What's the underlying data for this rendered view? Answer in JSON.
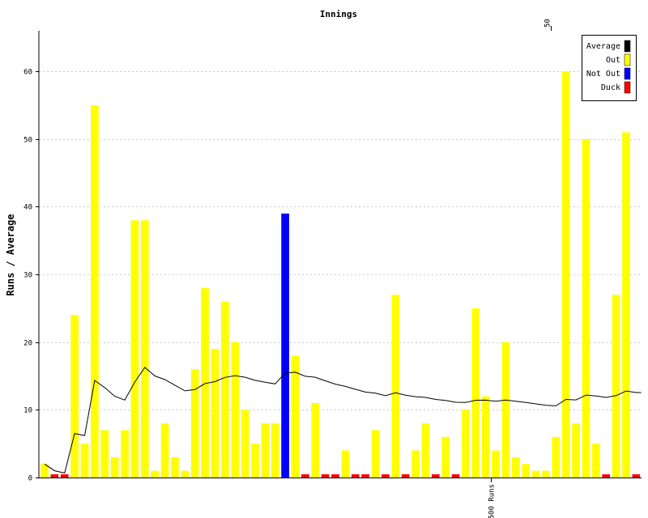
{
  "chart_data": {
    "type": "bar",
    "title": "Innings",
    "xlabel": "",
    "ylabel": "Runs / Average",
    "ylim": [
      0,
      66
    ],
    "yticks": [
      0,
      10,
      20,
      30,
      40,
      50,
      60
    ],
    "grid": true,
    "legend_position": "top-right",
    "top_markers": [
      {
        "innings": 50,
        "label": "50"
      }
    ],
    "bottom_markers": [
      {
        "innings": 44,
        "label": "500 Runs"
      }
    ],
    "series": [
      {
        "name": "Average",
        "color": "#000000"
      },
      {
        "name": "Out",
        "color": "#ffff00"
      },
      {
        "name": "Not Out",
        "color": "#0000ff"
      },
      {
        "name": "Duck",
        "color": "#ff0000"
      }
    ],
    "innings": [
      {
        "runs": 2,
        "status": "Out"
      },
      {
        "runs": 0,
        "status": "Duck"
      },
      {
        "runs": 0,
        "status": "Duck"
      },
      {
        "runs": 24,
        "status": "Out"
      },
      {
        "runs": 5,
        "status": "Out"
      },
      {
        "runs": 55,
        "status": "Out"
      },
      {
        "runs": 7,
        "status": "Out"
      },
      {
        "runs": 3,
        "status": "Out"
      },
      {
        "runs": 7,
        "status": "Out"
      },
      {
        "runs": 38,
        "status": "Out"
      },
      {
        "runs": 38,
        "status": "Out"
      },
      {
        "runs": 1,
        "status": "Out"
      },
      {
        "runs": 8,
        "status": "Out"
      },
      {
        "runs": 3,
        "status": "Out"
      },
      {
        "runs": 1,
        "status": "Out"
      },
      {
        "runs": 16,
        "status": "Out"
      },
      {
        "runs": 28,
        "status": "Out"
      },
      {
        "runs": 19,
        "status": "Out"
      },
      {
        "runs": 26,
        "status": "Out"
      },
      {
        "runs": 20,
        "status": "Out"
      },
      {
        "runs": 10,
        "status": "Out"
      },
      {
        "runs": 5,
        "status": "Out"
      },
      {
        "runs": 8,
        "status": "Out"
      },
      {
        "runs": 8,
        "status": "Out"
      },
      {
        "runs": 39,
        "status": "Not Out"
      },
      {
        "runs": 18,
        "status": "Out"
      },
      {
        "runs": 0,
        "status": "Duck"
      },
      {
        "runs": 11,
        "status": "Out"
      },
      {
        "runs": 0,
        "status": "Duck"
      },
      {
        "runs": 0,
        "status": "Duck"
      },
      {
        "runs": 4,
        "status": "Out"
      },
      {
        "runs": 0,
        "status": "Duck"
      },
      {
        "runs": 0,
        "status": "Duck"
      },
      {
        "runs": 7,
        "status": "Out"
      },
      {
        "runs": 0,
        "status": "Duck"
      },
      {
        "runs": 27,
        "status": "Out"
      },
      {
        "runs": 0,
        "status": "Duck"
      },
      {
        "runs": 4,
        "status": "Out"
      },
      {
        "runs": 8,
        "status": "Out"
      },
      {
        "runs": 0,
        "status": "Duck"
      },
      {
        "runs": 6,
        "status": "Out"
      },
      {
        "runs": 0,
        "status": "Duck"
      },
      {
        "runs": 10,
        "status": "Out"
      },
      {
        "runs": 25,
        "status": "Out"
      },
      {
        "runs": 12,
        "status": "Out"
      },
      {
        "runs": 4,
        "status": "Out"
      },
      {
        "runs": 20,
        "status": "Out"
      },
      {
        "runs": 3,
        "status": "Out"
      },
      {
        "runs": 2,
        "status": "Out"
      },
      {
        "runs": 1,
        "status": "Out"
      },
      {
        "runs": 1,
        "status": "Out"
      },
      {
        "runs": 6,
        "status": "Out"
      },
      {
        "runs": 60,
        "status": "Out"
      },
      {
        "runs": 8,
        "status": "Out"
      },
      {
        "runs": 50,
        "status": "Out"
      },
      {
        "runs": 5,
        "status": "Out"
      },
      {
        "runs": 0,
        "status": "Duck"
      },
      {
        "runs": 27,
        "status": "Out"
      },
      {
        "runs": 51,
        "status": "Out"
      },
      {
        "runs": 0,
        "status": "Duck"
      }
    ]
  }
}
